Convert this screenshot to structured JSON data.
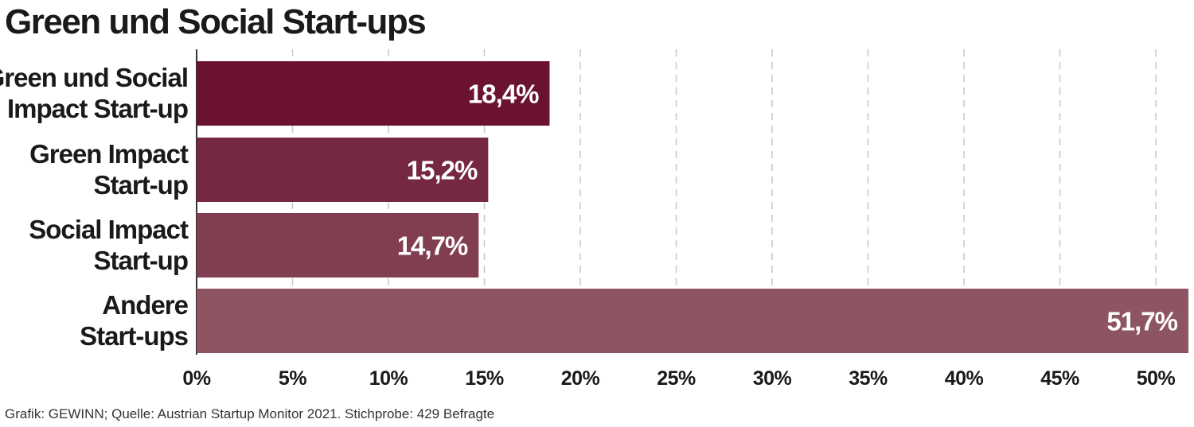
{
  "chart_data": {
    "type": "bar",
    "orientation": "horizontal",
    "title": "Green und Social Start-ups",
    "categories": [
      [
        "Green und Social",
        "Impact Start-up"
      ],
      [
        "Green Impact",
        "Start-up"
      ],
      [
        "Social Impact",
        "Start-up"
      ],
      [
        "Andere",
        "Start-ups"
      ]
    ],
    "values": [
      18.4,
      15.2,
      14.7,
      51.7
    ],
    "value_labels": [
      "18,4%",
      "15,2%",
      "14,7%",
      "51,7%"
    ],
    "bar_colors": [
      "#6b1233",
      "#752840",
      "#823e51",
      "#8d5462"
    ],
    "xlim": [
      0,
      51.7
    ],
    "x_ticks": [
      0,
      5,
      10,
      15,
      20,
      25,
      30,
      35,
      40,
      45,
      50
    ],
    "x_tick_labels": [
      "0%",
      "5%",
      "10%",
      "15%",
      "20%",
      "25%",
      "30%",
      "35%",
      "40%",
      "45%",
      "50%"
    ],
    "xlabel": "",
    "ylabel": "",
    "grid": true,
    "legend": "none",
    "source": "Grafik: GEWINN; Quelle: Austrian Startup Monitor 2021. Stichprobe: 429 Befragte"
  }
}
